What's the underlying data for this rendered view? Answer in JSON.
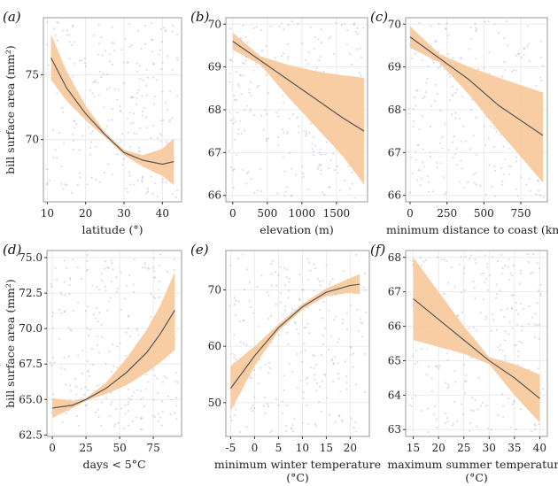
{
  "chart_data": [
    {
      "type": "line",
      "panel_label": "(a)",
      "xlabel": "latitude (°)",
      "ylabel": "bill surface area (mm²)",
      "xlim": [
        9,
        45
      ],
      "ylim": [
        65.2,
        79.4
      ],
      "xticks": [
        10,
        20,
        30,
        40
      ],
      "yticks": [
        70,
        75
      ],
      "fit": {
        "x": [
          11,
          15,
          20,
          25,
          30,
          35,
          40,
          43
        ],
        "y": [
          76.3,
          74.0,
          72.0,
          70.4,
          69.0,
          68.4,
          68.1,
          68.3
        ],
        "lower": [
          74.6,
          73.0,
          71.5,
          70.2,
          68.8,
          67.9,
          67.2,
          66.5
        ],
        "upper": [
          78.1,
          75.3,
          72.6,
          70.6,
          69.2,
          68.8,
          69.3,
          70.1
        ]
      }
    },
    {
      "type": "line",
      "panel_label": "(b)",
      "xlabel": "elevation (m)",
      "ylabel": "",
      "xlim": [
        -100,
        1950
      ],
      "ylim": [
        65.85,
        70.15
      ],
      "xticks": [
        0,
        500,
        1000,
        1500
      ],
      "yticks": [
        66,
        67,
        68,
        69,
        70
      ],
      "fit": {
        "x": [
          0,
          400,
          800,
          1200,
          1600,
          1900
        ],
        "y": [
          69.6,
          69.15,
          68.7,
          68.25,
          67.8,
          67.5
        ],
        "lower": [
          69.4,
          69.05,
          68.3,
          67.6,
          66.9,
          66.25
        ],
        "upper": [
          69.8,
          69.25,
          69.05,
          68.9,
          68.8,
          68.75
        ]
      }
    },
    {
      "type": "line",
      "panel_label": "(c)",
      "xlabel": "minimum distance to coast (km)",
      "ylabel": "",
      "xlim": [
        -30,
        930
      ],
      "ylim": [
        65.85,
        70.15
      ],
      "xticks": [
        0,
        250,
        500,
        750
      ],
      "yticks": [
        66,
        67,
        68,
        69,
        70
      ],
      "fit": {
        "x": [
          0,
          200,
          400,
          600,
          900
        ],
        "y": [
          69.7,
          69.2,
          68.7,
          68.1,
          67.4
        ],
        "lower": [
          69.45,
          69.1,
          68.35,
          67.5,
          66.3
        ],
        "upper": [
          69.95,
          69.3,
          69.0,
          68.75,
          68.4
        ]
      }
    },
    {
      "type": "line",
      "panel_label": "(d)",
      "xlabel": "days < 5°C",
      "ylabel": "bill surface area (mm²)",
      "xlim": [
        -4,
        96
      ],
      "ylim": [
        62.4,
        75.5
      ],
      "xticks": [
        0,
        25,
        50,
        75
      ],
      "yticks": [
        62.5,
        65.0,
        67.5,
        70.0,
        72.5,
        75.0
      ],
      "fit": {
        "x": [
          0,
          15,
          25,
          40,
          55,
          70,
          80,
          91
        ],
        "y": [
          64.4,
          64.6,
          65.0,
          65.8,
          66.9,
          68.3,
          69.6,
          71.3
        ],
        "lower": [
          63.7,
          64.4,
          64.9,
          65.4,
          66.0,
          66.9,
          67.6,
          68.5
        ],
        "upper": [
          65.1,
          64.9,
          65.1,
          66.2,
          67.9,
          69.9,
          71.6,
          74.0
        ]
      }
    },
    {
      "type": "line",
      "panel_label": "(e)",
      "xlabel": "minimum winter temperature (°C)",
      "ylabel": "",
      "xlim": [
        -6,
        24
      ],
      "ylim": [
        44,
        77
      ],
      "xticks": [
        -5,
        0,
        5,
        10,
        15,
        20
      ],
      "yticks": [
        50,
        60,
        70
      ],
      "fit": {
        "x": [
          -5,
          0,
          5,
          10,
          15,
          20,
          22
        ],
        "y": [
          52.5,
          58.3,
          63.3,
          67.0,
          69.6,
          70.8,
          71.0
        ],
        "lower": [
          48.5,
          56.5,
          62.7,
          66.5,
          68.9,
          69.5,
          69.2
        ],
        "upper": [
          56.5,
          60.0,
          63.9,
          67.5,
          70.3,
          72.1,
          72.8
        ]
      }
    },
    {
      "type": "line",
      "panel_label": "(f)",
      "xlabel": "maximum summer temperature (°C)",
      "ylabel": "",
      "xlim": [
        13.5,
        41.5
      ],
      "ylim": [
        62.8,
        68.2
      ],
      "xticks": [
        15,
        20,
        25,
        30,
        35,
        40
      ],
      "yticks": [
        63,
        64,
        65,
        66,
        67,
        68
      ],
      "fit": {
        "x": [
          15,
          20,
          25,
          30,
          35,
          40
        ],
        "y": [
          66.8,
          66.2,
          65.6,
          65.0,
          64.5,
          63.9
        ],
        "lower": [
          65.6,
          65.4,
          65.2,
          64.9,
          64.0,
          63.2
        ],
        "upper": [
          68.0,
          67.0,
          66.0,
          65.1,
          64.9,
          64.6
        ]
      }
    }
  ],
  "colors": {
    "band": "#f8c89a",
    "line": "#555555",
    "points": "#9a9ad0",
    "grid": "#ebebeb",
    "frame": "#999999"
  }
}
